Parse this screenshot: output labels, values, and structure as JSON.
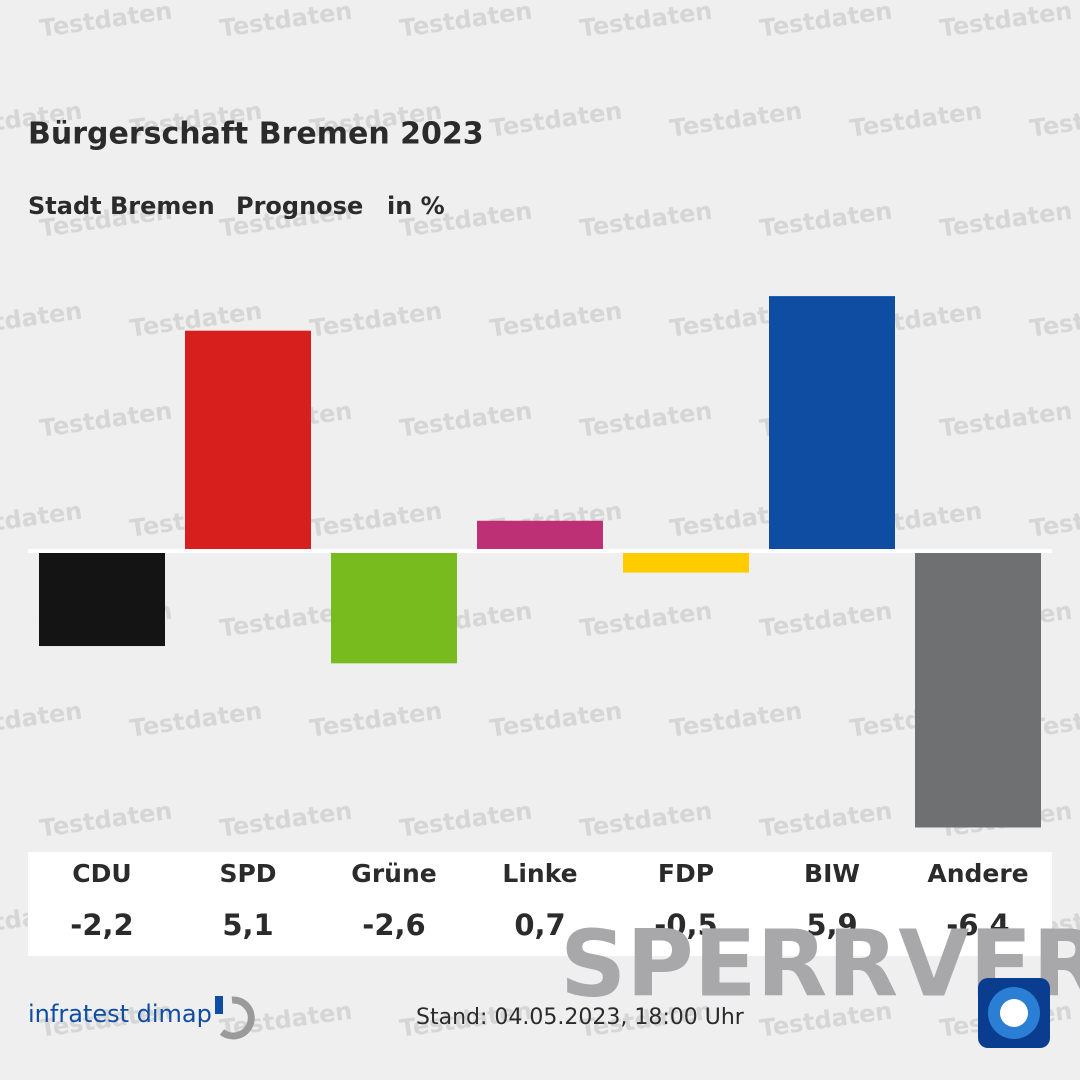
{
  "chart_data": {
    "type": "bar",
    "title": "Bürgerschaft Bremen 2023",
    "subtitle": [
      "Stadt Bremen",
      "Prognose",
      "in %"
    ],
    "categories": [
      "CDU",
      "SPD",
      "Grüne",
      "Linke",
      "FDP",
      "BIW",
      "Andere"
    ],
    "values": [
      -2.2,
      5.1,
      -2.6,
      0.7,
      -0.5,
      5.9,
      -6.4
    ],
    "value_labels": [
      "-2,2",
      "5,1",
      "-2,6",
      "0,7",
      "-0,5",
      "5,9",
      "-6,4"
    ],
    "colors": [
      "#141414",
      "#d71f1d",
      "#78bb1e",
      "#be3075",
      "#ffcc00",
      "#0f4da2",
      "#6f7072"
    ],
    "source": "infratest dimap",
    "timestamp": "Stand:  04.05.2023, 18:00 Uhr",
    "watermark": "Testdaten",
    "stamp": "SPERRVER"
  }
}
